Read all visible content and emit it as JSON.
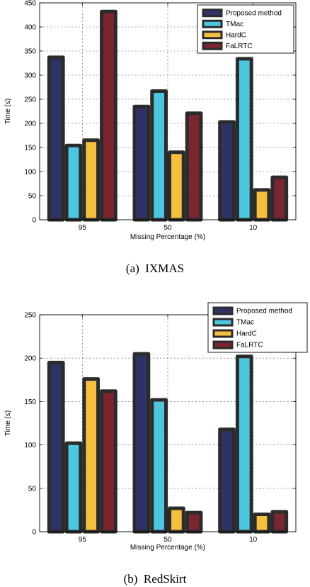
{
  "chart_data": [
    {
      "type": "bar",
      "caption": "(a)  IXMAS",
      "xlabel": "Missing Percentage (%)",
      "ylabel": "Time (s)",
      "categories": [
        "95",
        "50",
        "10"
      ],
      "ylim": [
        0,
        450
      ],
      "yticks": [
        0,
        50,
        100,
        150,
        200,
        250,
        300,
        350,
        400,
        450
      ],
      "grid": true,
      "legend_position": "top-right",
      "series": [
        {
          "name": "Proposed method",
          "color": "#2e3366",
          "values": [
            337,
            235,
            203
          ]
        },
        {
          "name": "TMac",
          "color": "#4ec6e0",
          "values": [
            154,
            267,
            334
          ]
        },
        {
          "name": "HardC",
          "color": "#f5c040",
          "values": [
            165,
            140,
            62
          ]
        },
        {
          "name": "FaLRTC",
          "color": "#7a2530",
          "values": [
            432,
            221,
            88
          ]
        }
      ]
    },
    {
      "type": "bar",
      "caption": "(b)  RedSkirt",
      "xlabel": "Missing Percentage (%)",
      "ylabel": "Time (s)",
      "categories": [
        "95",
        "50",
        "10"
      ],
      "ylim": [
        0,
        250
      ],
      "yticks": [
        0,
        50,
        100,
        150,
        200,
        250
      ],
      "grid": true,
      "legend_position": "top-right",
      "series": [
        {
          "name": "Proposed method",
          "color": "#2e3366",
          "values": [
            195,
            205,
            118
          ]
        },
        {
          "name": "TMac",
          "color": "#4ec6e0",
          "values": [
            102,
            152,
            202
          ]
        },
        {
          "name": "HardC",
          "color": "#f5c040",
          "values": [
            176,
            27,
            20
          ]
        },
        {
          "name": "FaLRTC",
          "color": "#7a2530",
          "values": [
            162,
            22,
            23
          ]
        }
      ]
    }
  ]
}
